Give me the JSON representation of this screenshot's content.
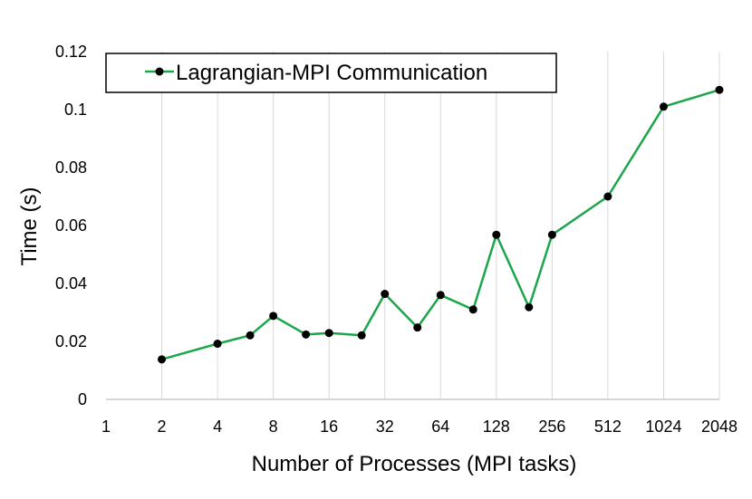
{
  "chart_data": {
    "type": "line",
    "xlabel": "Number of Processes (MPI tasks)",
    "ylabel": "Time (s)",
    "x_scale": "log2",
    "xlim": [
      1,
      2048
    ],
    "ylim": [
      0,
      0.12
    ],
    "x_ticks": [
      "1",
      "2",
      "4",
      "8",
      "16",
      "32",
      "64",
      "128",
      "256",
      "512",
      "1024",
      "2048"
    ],
    "y_ticks": [
      "0",
      "0.02",
      "0.04",
      "0.06",
      "0.08",
      "0.1",
      "0.12"
    ],
    "grid": "vertical",
    "legend": "top-left",
    "series": [
      {
        "name": "Lagrangian-MPI Communication",
        "color": "#1aa64a",
        "marker_color": "#000000",
        "x": [
          2,
          4,
          6,
          8,
          12,
          16,
          24,
          32,
          48,
          64,
          96,
          128,
          192,
          256,
          512,
          1024,
          2048
        ],
        "y": [
          0.0138,
          0.0192,
          0.0221,
          0.0288,
          0.0224,
          0.0229,
          0.0221,
          0.0364,
          0.0248,
          0.036,
          0.031,
          0.0568,
          0.0318,
          0.0568,
          0.07,
          0.101,
          0.1068
        ]
      }
    ]
  }
}
